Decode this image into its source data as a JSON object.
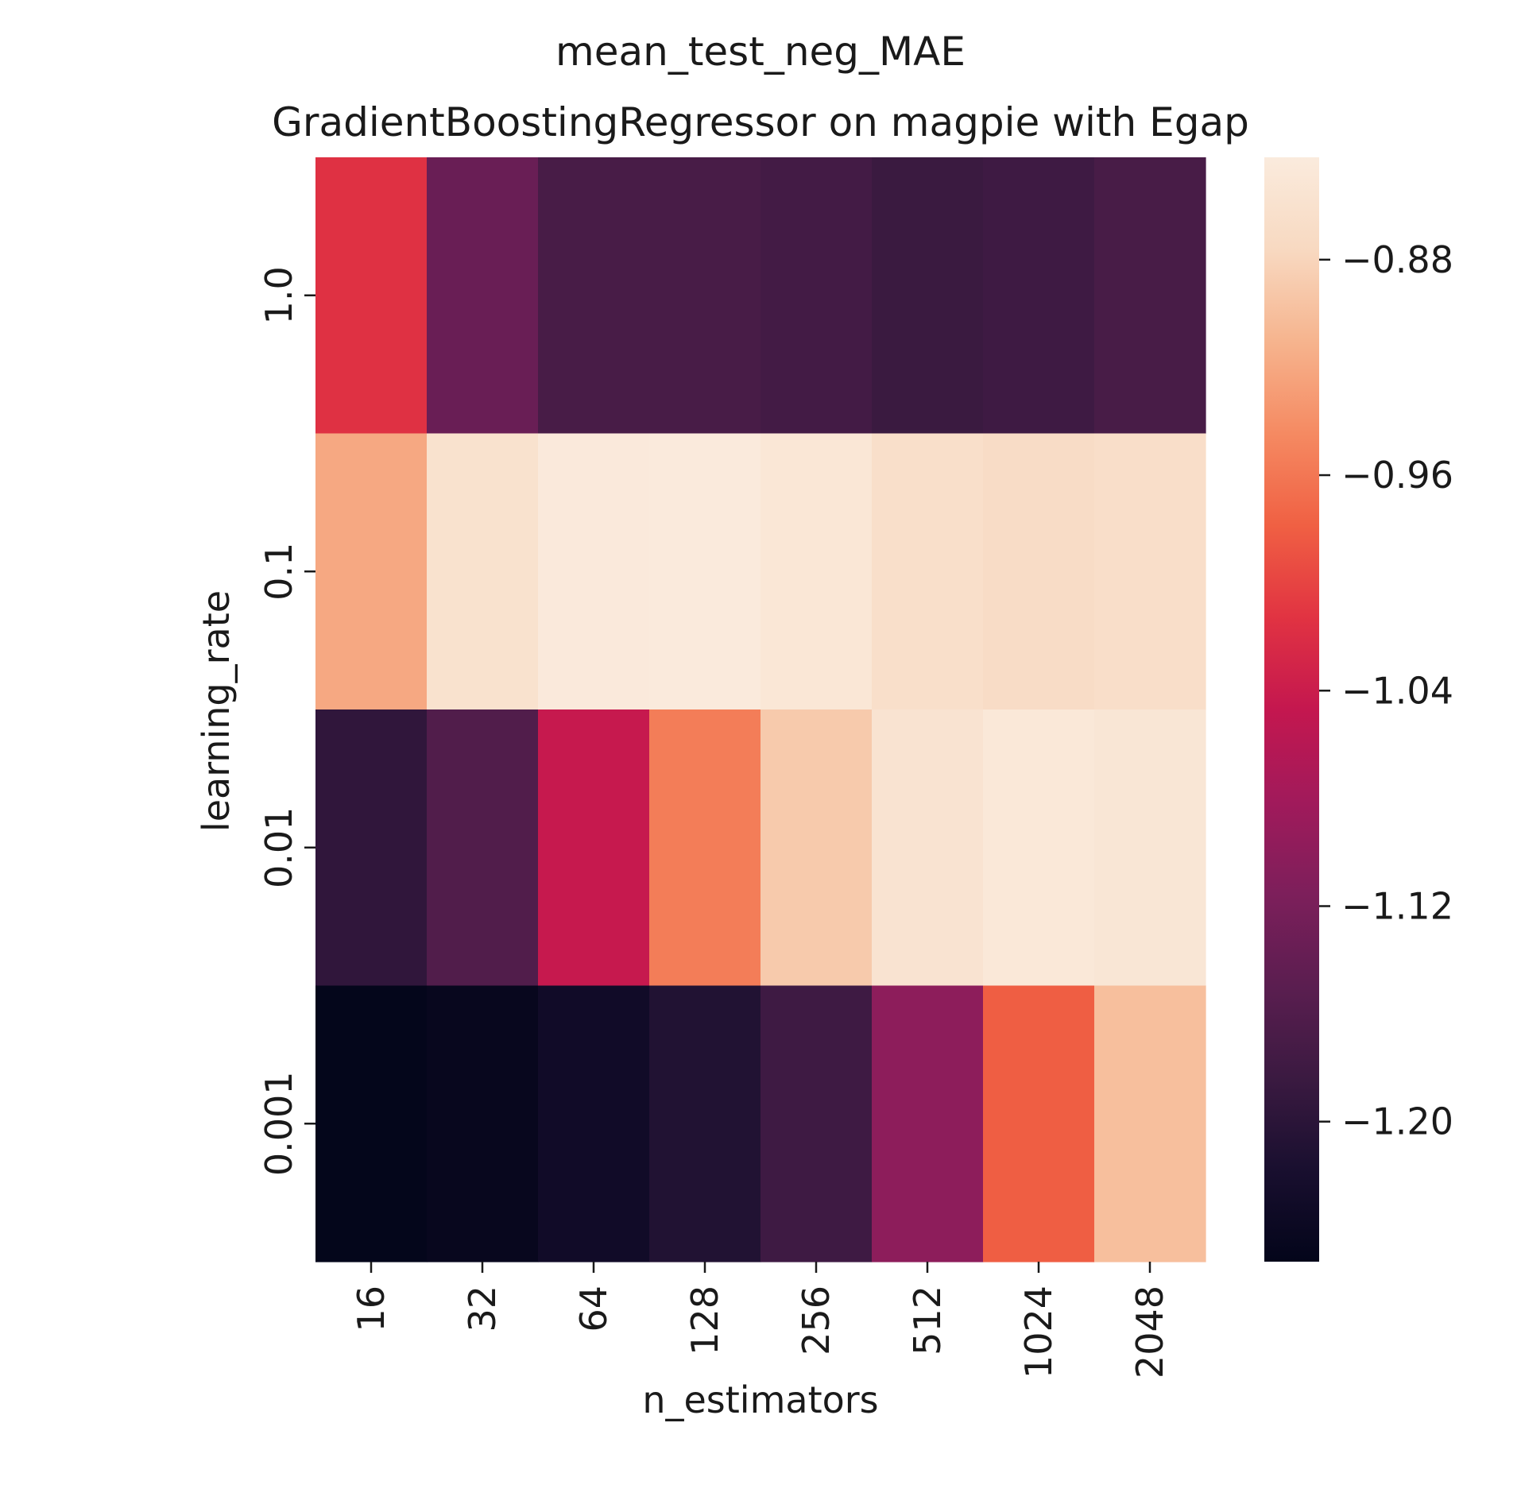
{
  "chart_data": {
    "type": "heatmap",
    "title_line1": "mean_test_neg_MAE",
    "title_line2": "GradientBoostingRegressor on magpie with Egap",
    "xlabel": "n_estimators",
    "ylabel": "learning_rate",
    "x_categories": [
      "16",
      "32",
      "64",
      "128",
      "256",
      "512",
      "1024",
      "2048"
    ],
    "y_categories": [
      "1.0",
      "0.1",
      "0.01",
      "0.001"
    ],
    "values": [
      [
        -1.015,
        -1.135,
        -1.17,
        -1.17,
        -1.175,
        -1.185,
        -1.18,
        -1.17
      ],
      [
        -0.92,
        -0.86,
        -0.845,
        -0.843,
        -0.85,
        -0.865,
        -0.87,
        -0.867
      ],
      [
        -1.195,
        -1.16,
        -1.045,
        -0.955,
        -0.89,
        -0.857,
        -0.848,
        -0.852
      ],
      [
        -1.25,
        -1.245,
        -1.23,
        -1.21,
        -1.18,
        -1.1,
        -0.98,
        -0.9
      ]
    ],
    "colorbar": {
      "min": -1.252,
      "max": -0.842,
      "ticks": [
        -0.88,
        -0.96,
        -1.04,
        -1.12,
        -1.2
      ],
      "tick_labels": [
        "−0.88",
        "−0.96",
        "−1.04",
        "−1.12",
        "−1.20"
      ],
      "colormap": "rocket",
      "color_stops": [
        "#03051a",
        "#190f2f",
        "#3b1a41",
        "#5b1e50",
        "#7d1f5b",
        "#a11a5b",
        "#c4174f",
        "#e13342",
        "#f06043",
        "#f58a62",
        "#f6b48e",
        "#f8d9c1",
        "#faebdd"
      ]
    }
  }
}
